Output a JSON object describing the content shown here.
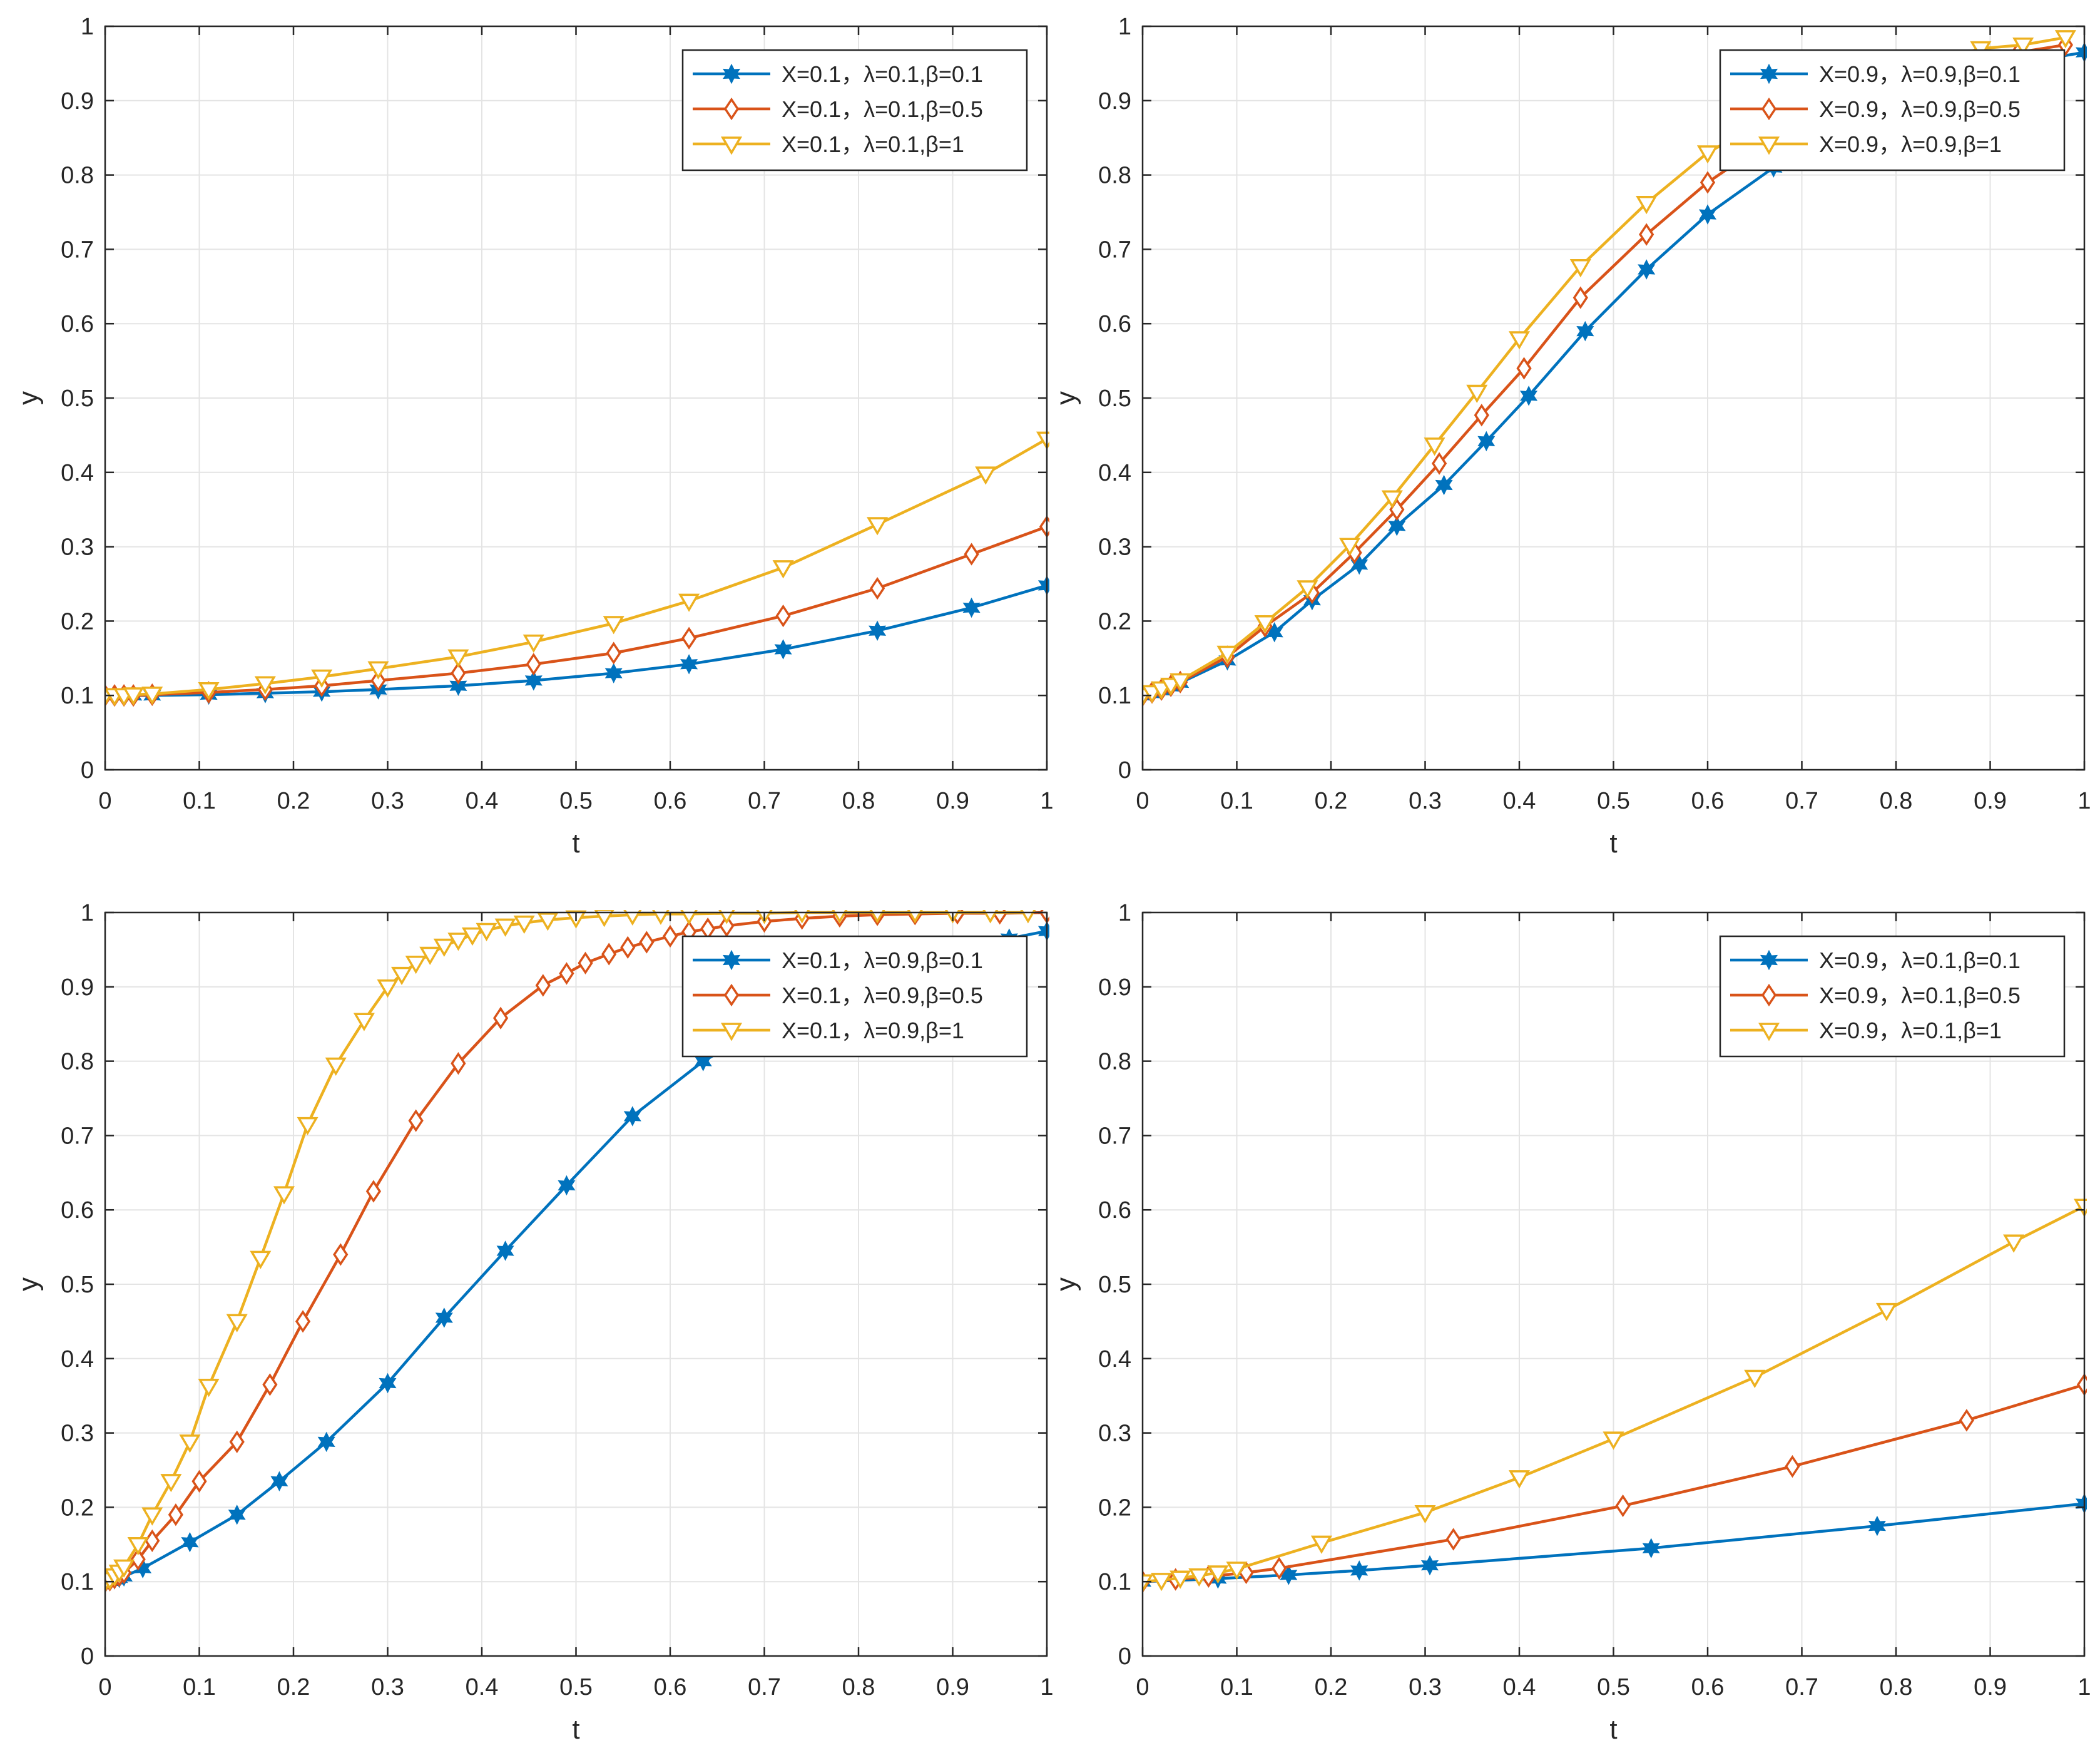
{
  "figure": {
    "layout": "2x2 subplot grid"
  },
  "chart_data": [
    {
      "type": "line",
      "xlabel": "t",
      "ylabel": "y",
      "xlim": [
        0,
        1
      ],
      "ylim": [
        0,
        1
      ],
      "xticks": [
        "0",
        "0.1",
        "0.2",
        "0.3",
        "0.4",
        "0.5",
        "0.6",
        "0.7",
        "0.8",
        "0.9",
        "1"
      ],
      "yticks": [
        "0",
        "0.1",
        "0.2",
        "0.3",
        "0.4",
        "0.5",
        "0.6",
        "0.7",
        "0.8",
        "0.9",
        "1"
      ],
      "grid": true,
      "legend": "top-right",
      "series": [
        {
          "name": "X=0.1，λ=0.1,β=0.1",
          "color": "#0072BD",
          "marker": "hexagram",
          "x": [
            0,
            0.01,
            0.02,
            0.03,
            0.05,
            0.11,
            0.17,
            0.23,
            0.29,
            0.375,
            0.455,
            0.54,
            0.62,
            0.72,
            0.82,
            0.92,
            1.0
          ],
          "y": [
            0.1,
            0.1,
            0.1,
            0.1,
            0.1,
            0.101,
            0.103,
            0.105,
            0.108,
            0.113,
            0.12,
            0.13,
            0.142,
            0.162,
            0.187,
            0.218,
            0.248
          ]
        },
        {
          "name": "X=0.1，λ=0.1,β=0.5",
          "color": "#D95319",
          "marker": "diamond",
          "x": [
            0,
            0.01,
            0.02,
            0.03,
            0.05,
            0.11,
            0.17,
            0.23,
            0.29,
            0.375,
            0.455,
            0.54,
            0.62,
            0.72,
            0.82,
            0.92,
            1.0
          ],
          "y": [
            0.1,
            0.1,
            0.1,
            0.1,
            0.101,
            0.104,
            0.108,
            0.113,
            0.12,
            0.13,
            0.142,
            0.157,
            0.177,
            0.207,
            0.244,
            0.29,
            0.327
          ]
        },
        {
          "name": "X=0.1，λ=0.1,β=1",
          "color": "#EDB120",
          "marker": "triangle-down",
          "x": [
            0,
            0.01,
            0.02,
            0.03,
            0.05,
            0.11,
            0.17,
            0.23,
            0.29,
            0.375,
            0.455,
            0.54,
            0.62,
            0.72,
            0.82,
            0.935,
            1.0
          ],
          "y": [
            0.1,
            0.1,
            0.1,
            0.101,
            0.102,
            0.108,
            0.116,
            0.125,
            0.136,
            0.152,
            0.172,
            0.197,
            0.227,
            0.272,
            0.33,
            0.398,
            0.445
          ]
        }
      ]
    },
    {
      "type": "line",
      "xlabel": "t",
      "ylabel": "y",
      "xlim": [
        0,
        1
      ],
      "ylim": [
        0,
        1
      ],
      "xticks": [
        "0",
        "0.1",
        "0.2",
        "0.3",
        "0.4",
        "0.5",
        "0.6",
        "0.7",
        "0.8",
        "0.9",
        "1"
      ],
      "yticks": [
        "0",
        "0.1",
        "0.2",
        "0.3",
        "0.4",
        "0.5",
        "0.6",
        "0.7",
        "0.8",
        "0.9",
        "1"
      ],
      "grid": true,
      "legend": "top-right",
      "series": [
        {
          "name": "X=0.9，λ=0.9,β=0.1",
          "color": "#0072BD",
          "marker": "hexagram",
          "x": [
            0,
            0.01,
            0.02,
            0.03,
            0.04,
            0.09,
            0.14,
            0.18,
            0.23,
            0.27,
            0.32,
            0.365,
            0.41,
            0.47,
            0.535,
            0.6,
            0.67,
            0.75,
            0.85,
            0.93,
            1.0
          ],
          "y": [
            0.1,
            0.103,
            0.107,
            0.112,
            0.117,
            0.147,
            0.185,
            0.228,
            0.276,
            0.328,
            0.383,
            0.442,
            0.503,
            0.59,
            0.673,
            0.747,
            0.81,
            0.87,
            0.92,
            0.95,
            0.965
          ]
        },
        {
          "name": "X=0.9，λ=0.9,β=0.5",
          "color": "#D95319",
          "marker": "diamond",
          "x": [
            0,
            0.01,
            0.02,
            0.03,
            0.04,
            0.09,
            0.13,
            0.18,
            0.225,
            0.27,
            0.315,
            0.36,
            0.405,
            0.465,
            0.535,
            0.6,
            0.67,
            0.75,
            0.85,
            0.93,
            0.98
          ],
          "y": [
            0.1,
            0.104,
            0.108,
            0.113,
            0.118,
            0.152,
            0.193,
            0.238,
            0.292,
            0.35,
            0.412,
            0.477,
            0.54,
            0.635,
            0.72,
            0.79,
            0.85,
            0.9,
            0.94,
            0.965,
            0.975
          ]
        },
        {
          "name": "X=0.9，λ=0.9,β=1",
          "color": "#EDB120",
          "marker": "triangle-down",
          "x": [
            0,
            0.01,
            0.02,
            0.03,
            0.04,
            0.09,
            0.13,
            0.175,
            0.22,
            0.265,
            0.31,
            0.355,
            0.4,
            0.465,
            0.535,
            0.6,
            0.7,
            0.8,
            0.89,
            0.935,
            0.98
          ],
          "y": [
            0.1,
            0.104,
            0.109,
            0.114,
            0.12,
            0.157,
            0.198,
            0.245,
            0.302,
            0.366,
            0.437,
            0.508,
            0.58,
            0.677,
            0.762,
            0.83,
            0.9,
            0.94,
            0.97,
            0.975,
            0.985
          ]
        }
      ]
    },
    {
      "type": "line",
      "xlabel": "t",
      "ylabel": "y",
      "xlim": [
        0,
        1
      ],
      "ylim": [
        0,
        1
      ],
      "xticks": [
        "0",
        "0.1",
        "0.2",
        "0.3",
        "0.4",
        "0.5",
        "0.6",
        "0.7",
        "0.8",
        "0.9",
        "1"
      ],
      "yticks": [
        "0",
        "0.1",
        "0.2",
        "0.3",
        "0.4",
        "0.5",
        "0.6",
        "0.7",
        "0.8",
        "0.9",
        "1"
      ],
      "grid": true,
      "legend": "top-right",
      "series": [
        {
          "name": "X=0.1，λ=0.9,β=0.1",
          "color": "#0072BD",
          "marker": "hexagram",
          "x": [
            0,
            0.005,
            0.01,
            0.015,
            0.02,
            0.04,
            0.09,
            0.14,
            0.185,
            0.235,
            0.3,
            0.36,
            0.425,
            0.49,
            0.56,
            0.635,
            0.72,
            0.8,
            0.88,
            0.96,
            1.0
          ],
          "y": [
            0.1,
            0.101,
            0.103,
            0.105,
            0.107,
            0.118,
            0.153,
            0.19,
            0.235,
            0.288,
            0.367,
            0.455,
            0.545,
            0.633,
            0.726,
            0.8,
            0.86,
            0.9,
            0.93,
            0.965,
            0.975
          ]
        },
        {
          "name": "X=0.1，λ=0.9,β=0.5",
          "color": "#D95319",
          "marker": "diamond",
          "x": [
            0,
            0.005,
            0.01,
            0.015,
            0.02,
            0.035,
            0.05,
            0.075,
            0.1,
            0.14,
            0.175,
            0.21,
            0.25,
            0.285,
            0.33,
            0.375,
            0.42,
            0.465,
            0.49,
            0.51,
            0.535,
            0.555,
            0.575,
            0.6,
            0.62,
            0.64,
            0.66,
            0.7,
            0.74,
            0.78,
            0.82,
            0.86,
            0.905,
            0.95,
            1.0
          ],
          "y": [
            0.1,
            0.102,
            0.105,
            0.108,
            0.112,
            0.13,
            0.155,
            0.19,
            0.235,
            0.288,
            0.365,
            0.45,
            0.54,
            0.625,
            0.72,
            0.797,
            0.858,
            0.902,
            0.918,
            0.932,
            0.944,
            0.953,
            0.96,
            0.968,
            0.974,
            0.978,
            0.982,
            0.988,
            0.992,
            0.995,
            0.997,
            0.998,
            0.999,
            0.999,
            1.0
          ]
        },
        {
          "name": "X=0.1，λ=0.9,β=1",
          "color": "#EDB120",
          "marker": "triangle-down",
          "x": [
            0,
            0.005,
            0.01,
            0.015,
            0.02,
            0.035,
            0.05,
            0.07,
            0.09,
            0.11,
            0.14,
            0.165,
            0.19,
            0.215,
            0.245,
            0.275,
            0.3,
            0.315,
            0.33,
            0.345,
            0.36,
            0.375,
            0.39,
            0.405,
            0.425,
            0.445,
            0.47,
            0.5,
            0.53,
            0.56,
            0.59,
            0.62,
            0.66,
            0.7,
            0.74,
            0.78,
            0.82,
            0.86,
            0.9,
            0.94,
            0.98
          ],
          "y": [
            0.1,
            0.103,
            0.108,
            0.113,
            0.12,
            0.15,
            0.19,
            0.235,
            0.288,
            0.363,
            0.45,
            0.535,
            0.622,
            0.715,
            0.795,
            0.855,
            0.9,
            0.917,
            0.932,
            0.944,
            0.955,
            0.963,
            0.97,
            0.976,
            0.982,
            0.986,
            0.99,
            0.993,
            0.995,
            0.997,
            0.998,
            0.998,
            0.999,
            0.999,
            1.0,
            1.0,
            1.0,
            1.0,
            1.0,
            1.0,
            1.0
          ]
        }
      ]
    },
    {
      "type": "line",
      "xlabel": "t",
      "ylabel": "y",
      "xlim": [
        0,
        1
      ],
      "ylim": [
        0,
        1
      ],
      "xticks": [
        "0",
        "0.1",
        "0.2",
        "0.3",
        "0.4",
        "0.5",
        "0.6",
        "0.7",
        "0.8",
        "0.9",
        "1"
      ],
      "yticks": [
        "0",
        "0.1",
        "0.2",
        "0.3",
        "0.4",
        "0.5",
        "0.6",
        "0.7",
        "0.8",
        "0.9",
        "1"
      ],
      "grid": true,
      "legend": "top-right",
      "series": [
        {
          "name": "X=0.9，λ=0.1,β=0.1",
          "color": "#0072BD",
          "marker": "hexagram",
          "x": [
            0,
            0.08,
            0.155,
            0.23,
            0.305,
            0.54,
            0.78,
            1.0
          ],
          "y": [
            0.1,
            0.104,
            0.109,
            0.115,
            0.122,
            0.145,
            0.175,
            0.205
          ]
        },
        {
          "name": "X=0.9，λ=0.1,β=0.5",
          "color": "#D95319",
          "marker": "diamond",
          "x": [
            0,
            0.035,
            0.07,
            0.11,
            0.145,
            0.33,
            0.51,
            0.69,
            0.875,
            1.0
          ],
          "y": [
            0.1,
            0.103,
            0.107,
            0.112,
            0.118,
            0.157,
            0.202,
            0.255,
            0.317,
            0.365
          ]
        },
        {
          "name": "X=0.9，λ=0.1,β=1",
          "color": "#EDB120",
          "marker": "triangle-down",
          "x": [
            0,
            0.02,
            0.04,
            0.06,
            0.08,
            0.1,
            0.19,
            0.3,
            0.4,
            0.5,
            0.65,
            0.79,
            0.925,
            1.0
          ],
          "y": [
            0.1,
            0.102,
            0.105,
            0.108,
            0.112,
            0.117,
            0.152,
            0.193,
            0.24,
            0.292,
            0.375,
            0.465,
            0.557,
            0.605
          ]
        }
      ]
    }
  ]
}
